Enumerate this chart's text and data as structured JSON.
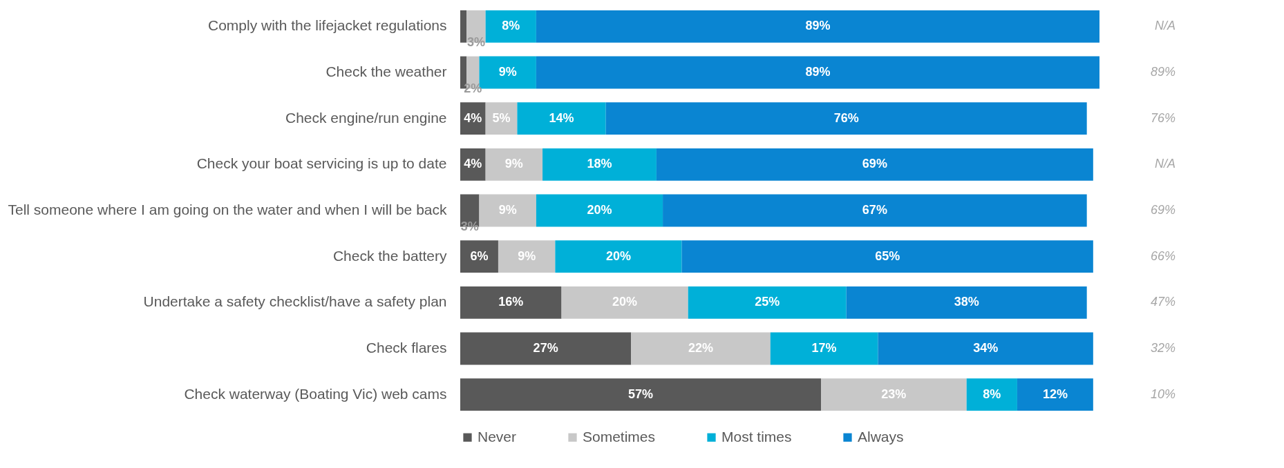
{
  "chart_data": {
    "type": "bar",
    "orientation": "horizontal",
    "stacked": true,
    "legend": "bottom",
    "categories": [
      "Comply with the lifejacket regulations",
      "Check the weather",
      "Check engine/run engine",
      "Check your boat servicing is up to date",
      "Tell someone where I am going on the water and when I will be back",
      "Check the battery",
      "Undertake a safety checklist/have a safety plan",
      "Check flares",
      "Check waterway (Boating Vic) web cams"
    ],
    "series": [
      {
        "name": "Never",
        "color": "#595959",
        "values": [
          1,
          1,
          4,
          4,
          3,
          6,
          16,
          27,
          57
        ],
        "value_labels": [
          null,
          null,
          "4%",
          "4%",
          "3%",
          "6%",
          "16%",
          "27%",
          "57%"
        ]
      },
      {
        "name": "Sometimes",
        "color": "#c8c8c8",
        "values": [
          3,
          2,
          5,
          9,
          9,
          9,
          20,
          22,
          23
        ],
        "value_labels": [
          "3%",
          "2%",
          "5%",
          "9%",
          "9%",
          "9%",
          "20%",
          "22%",
          "23%"
        ]
      },
      {
        "name": "Most times",
        "color": "#00b0d8",
        "values": [
          8,
          9,
          14,
          18,
          20,
          20,
          25,
          17,
          8
        ],
        "value_labels": [
          "8%",
          "9%",
          "14%",
          "18%",
          "20%",
          "20%",
          "25%",
          "17%",
          "8%"
        ]
      },
      {
        "name": "Always",
        "color": "#0a85d2",
        "values": [
          89,
          89,
          76,
          69,
          67,
          65,
          38,
          34,
          12
        ],
        "value_labels": [
          "89%",
          "89%",
          "76%",
          "69%",
          "67%",
          "65%",
          "38%",
          "34%",
          "12%"
        ]
      }
    ],
    "annotations": [
      "N/A",
      "89%",
      "76%",
      "N/A",
      "69%",
      "66%",
      "47%",
      "32%",
      "10%"
    ]
  }
}
